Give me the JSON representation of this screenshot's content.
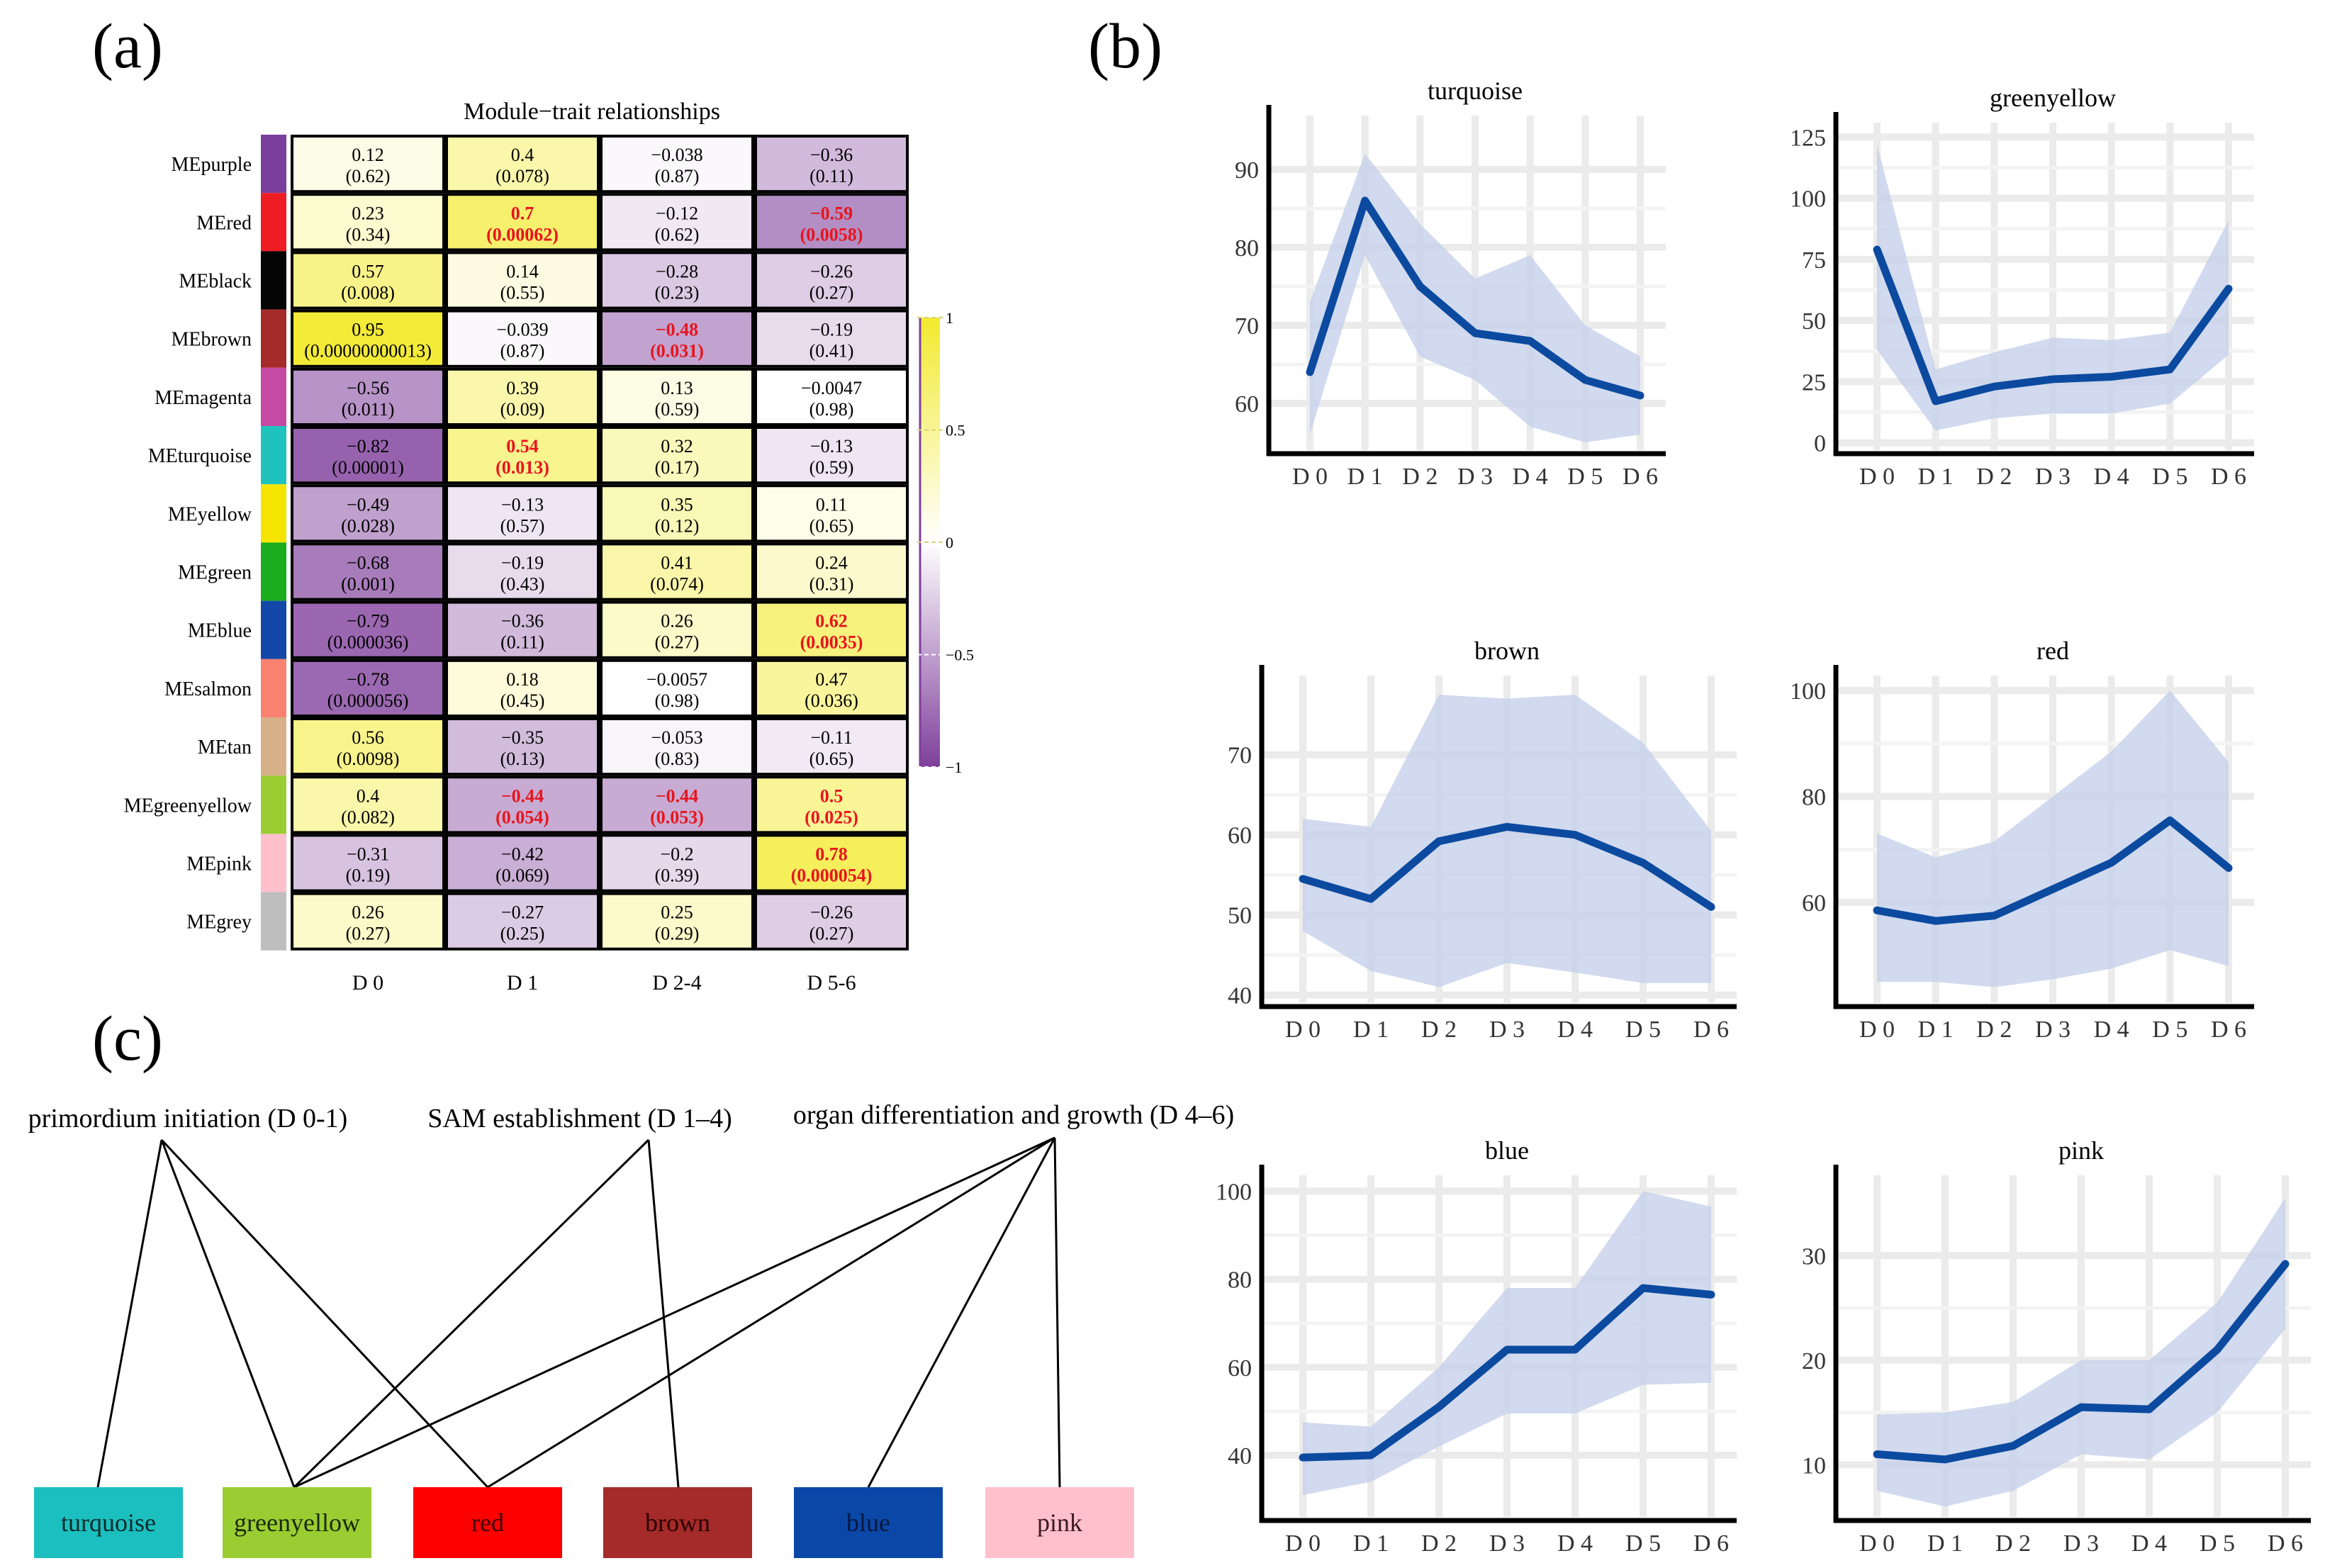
{
  "panel_labels": {
    "a": "(a)",
    "b": "(b)",
    "c": "(c)"
  },
  "colors": {
    "positive": "#f2ea2e",
    "neutral": "#ffffff",
    "negative": "#7f3f9b",
    "significant_text": "#e8141e",
    "line": "#0c4aa0",
    "band": "#c6d1ea"
  },
  "chart_data": [
    {
      "type": "heatmap",
      "title": "Module−trait relationships",
      "columns": [
        "D 0",
        "D 1",
        "D 2-4",
        "D 5-6"
      ],
      "value_range": [
        -1,
        1
      ],
      "legend_ticks": [
        1,
        0.5,
        0,
        -0.5,
        -1
      ],
      "legend_tick_labels": [
        "1",
        "0.5",
        "0",
        "−0.5",
        "−1"
      ],
      "rows": [
        {
          "label": "MEpurple",
          "module_color": "#7a3f9b",
          "cells": [
            {
              "r": 0.12,
              "r_text": "0.12",
              "p_text": "(0.62)",
              "sig": false
            },
            {
              "r": 0.4,
              "r_text": "0.4",
              "p_text": "(0.078)",
              "sig": false
            },
            {
              "r": -0.038,
              "r_text": "−0.038",
              "p_text": "(0.87)",
              "sig": false
            },
            {
              "r": -0.36,
              "r_text": "−0.36",
              "p_text": "(0.11)",
              "sig": false
            }
          ]
        },
        {
          "label": "MEred",
          "module_color": "#ee1d23",
          "cells": [
            {
              "r": 0.23,
              "r_text": "0.23",
              "p_text": "(0.34)",
              "sig": false
            },
            {
              "r": 0.7,
              "r_text": "0.7",
              "p_text": "(0.00062)",
              "sig": true
            },
            {
              "r": -0.12,
              "r_text": "−0.12",
              "p_text": "(0.62)",
              "sig": false
            },
            {
              "r": -0.59,
              "r_text": "−0.59",
              "p_text": "(0.0058)",
              "sig": true
            }
          ]
        },
        {
          "label": "MEblack",
          "module_color": "#050505",
          "cells": [
            {
              "r": 0.57,
              "r_text": "0.57",
              "p_text": "(0.008)",
              "sig": false
            },
            {
              "r": 0.14,
              "r_text": "0.14",
              "p_text": "(0.55)",
              "sig": false
            },
            {
              "r": -0.28,
              "r_text": "−0.28",
              "p_text": "(0.23)",
              "sig": false
            },
            {
              "r": -0.26,
              "r_text": "−0.26",
              "p_text": "(0.27)",
              "sig": false
            }
          ]
        },
        {
          "label": "MEbrown",
          "module_color": "#a52a2a",
          "cells": [
            {
              "r": 0.95,
              "r_text": "0.95",
              "p_text": "(0.00000000013)",
              "sig": false
            },
            {
              "r": -0.039,
              "r_text": "−0.039",
              "p_text": "(0.87)",
              "sig": false
            },
            {
              "r": -0.48,
              "r_text": "−0.48",
              "p_text": "(0.031)",
              "sig": true
            },
            {
              "r": -0.19,
              "r_text": "−0.19",
              "p_text": "(0.41)",
              "sig": false
            }
          ]
        },
        {
          "label": "MEmagenta",
          "module_color": "#c44aa4",
          "cells": [
            {
              "r": -0.56,
              "r_text": "−0.56",
              "p_text": "(0.011)",
              "sig": false
            },
            {
              "r": 0.39,
              "r_text": "0.39",
              "p_text": "(0.09)",
              "sig": false
            },
            {
              "r": 0.13,
              "r_text": "0.13",
              "p_text": "(0.59)",
              "sig": false
            },
            {
              "r": -0.0047,
              "r_text": "−0.0047",
              "p_text": "(0.98)",
              "sig": false
            }
          ]
        },
        {
          "label": "MEturquoise",
          "module_color": "#1fc3bd",
          "cells": [
            {
              "r": -0.82,
              "r_text": "−0.82",
              "p_text": "(0.00001)",
              "sig": false
            },
            {
              "r": 0.54,
              "r_text": "0.54",
              "p_text": "(0.013)",
              "sig": true
            },
            {
              "r": 0.32,
              "r_text": "0.32",
              "p_text": "(0.17)",
              "sig": false
            },
            {
              "r": -0.13,
              "r_text": "−0.13",
              "p_text": "(0.59)",
              "sig": false
            }
          ]
        },
        {
          "label": "MEyellow",
          "module_color": "#f4e400",
          "cells": [
            {
              "r": -0.49,
              "r_text": "−0.49",
              "p_text": "(0.028)",
              "sig": false
            },
            {
              "r": -0.13,
              "r_text": "−0.13",
              "p_text": "(0.57)",
              "sig": false
            },
            {
              "r": 0.35,
              "r_text": "0.35",
              "p_text": "(0.12)",
              "sig": false
            },
            {
              "r": 0.11,
              "r_text": "0.11",
              "p_text": "(0.65)",
              "sig": false
            }
          ]
        },
        {
          "label": "MEgreen",
          "module_color": "#1aad1d",
          "cells": [
            {
              "r": -0.68,
              "r_text": "−0.68",
              "p_text": "(0.001)",
              "sig": false
            },
            {
              "r": -0.19,
              "r_text": "−0.19",
              "p_text": "(0.43)",
              "sig": false
            },
            {
              "r": 0.41,
              "r_text": "0.41",
              "p_text": "(0.074)",
              "sig": false
            },
            {
              "r": 0.24,
              "r_text": "0.24",
              "p_text": "(0.31)",
              "sig": false
            }
          ]
        },
        {
          "label": "MEblue",
          "module_color": "#1348a8",
          "cells": [
            {
              "r": -0.79,
              "r_text": "−0.79",
              "p_text": "(0.000036)",
              "sig": false
            },
            {
              "r": -0.36,
              "r_text": "−0.36",
              "p_text": "(0.11)",
              "sig": false
            },
            {
              "r": 0.26,
              "r_text": "0.26",
              "p_text": "(0.27)",
              "sig": false
            },
            {
              "r": 0.62,
              "r_text": "0.62",
              "p_text": "(0.0035)",
              "sig": true
            }
          ]
        },
        {
          "label": "MEsalmon",
          "module_color": "#fa8170",
          "cells": [
            {
              "r": -0.78,
              "r_text": "−0.78",
              "p_text": "(0.000056)",
              "sig": false
            },
            {
              "r": 0.18,
              "r_text": "0.18",
              "p_text": "(0.45)",
              "sig": false
            },
            {
              "r": -0.0057,
              "r_text": "−0.0057",
              "p_text": "(0.98)",
              "sig": false
            },
            {
              "r": 0.47,
              "r_text": "0.47",
              "p_text": "(0.036)",
              "sig": false
            }
          ]
        },
        {
          "label": "MEtan",
          "module_color": "#d8b08a",
          "cells": [
            {
              "r": 0.56,
              "r_text": "0.56",
              "p_text": "(0.0098)",
              "sig": false
            },
            {
              "r": -0.35,
              "r_text": "−0.35",
              "p_text": "(0.13)",
              "sig": false
            },
            {
              "r": -0.053,
              "r_text": "−0.053",
              "p_text": "(0.83)",
              "sig": false
            },
            {
              "r": -0.11,
              "r_text": "−0.11",
              "p_text": "(0.65)",
              "sig": false
            }
          ]
        },
        {
          "label": "MEgreenyellow",
          "module_color": "#9acd32",
          "cells": [
            {
              "r": 0.4,
              "r_text": "0.4",
              "p_text": "(0.082)",
              "sig": false
            },
            {
              "r": -0.44,
              "r_text": "−0.44",
              "p_text": "(0.054)",
              "sig": true
            },
            {
              "r": -0.44,
              "r_text": "−0.44",
              "p_text": "(0.053)",
              "sig": true
            },
            {
              "r": 0.5,
              "r_text": "0.5",
              "p_text": "(0.025)",
              "sig": true
            }
          ]
        },
        {
          "label": "MEpink",
          "module_color": "#ffc0cb",
          "cells": [
            {
              "r": -0.31,
              "r_text": "−0.31",
              "p_text": "(0.19)",
              "sig": false
            },
            {
              "r": -0.42,
              "r_text": "−0.42",
              "p_text": "(0.069)",
              "sig": false
            },
            {
              "r": -0.2,
              "r_text": "−0.2",
              "p_text": "(0.39)",
              "sig": false
            },
            {
              "r": 0.78,
              "r_text": "0.78",
              "p_text": "(0.000054)",
              "sig": true
            }
          ]
        },
        {
          "label": "MEgrey",
          "module_color": "#bebebe",
          "cells": [
            {
              "r": 0.26,
              "r_text": "0.26",
              "p_text": "(0.27)",
              "sig": false
            },
            {
              "r": -0.27,
              "r_text": "−0.27",
              "p_text": "(0.25)",
              "sig": false
            },
            {
              "r": 0.25,
              "r_text": "0.25",
              "p_text": "(0.29)",
              "sig": false
            },
            {
              "r": -0.26,
              "r_text": "−0.26",
              "p_text": "(0.27)",
              "sig": false
            }
          ]
        }
      ]
    },
    {
      "type": "line",
      "title": "turquoise",
      "categories": [
        "D 0",
        "D 1",
        "D 2",
        "D 3",
        "D 4",
        "D 5",
        "D 6"
      ],
      "values": [
        64,
        86,
        75,
        69,
        68,
        63,
        61
      ],
      "lower": [
        56,
        79,
        66,
        63,
        57,
        55,
        56
      ],
      "upper": [
        73,
        92,
        83,
        76,
        79,
        70,
        66
      ],
      "ylim": [
        54,
        96
      ],
      "yticks": [
        60,
        70,
        80,
        90
      ]
    },
    {
      "type": "line",
      "title": "greenyellow",
      "categories": [
        "D 0",
        "D 1",
        "D 2",
        "D 3",
        "D 4",
        "D 5",
        "D 6"
      ],
      "values": [
        79,
        17,
        23,
        26,
        27,
        30,
        63
      ],
      "lower": [
        38,
        5,
        10,
        12,
        12,
        16,
        36
      ],
      "upper": [
        122,
        30,
        37,
        43,
        42,
        45,
        91
      ],
      "ylim": [
        -3,
        128
      ],
      "yticks": [
        0,
        25,
        50,
        75,
        100,
        125
      ]
    },
    {
      "type": "line",
      "title": "brown",
      "categories": [
        "D 0",
        "D 1",
        "D 2",
        "D 3",
        "D 4",
        "D 5",
        "D 6"
      ],
      "values": [
        54.5,
        52,
        59.2,
        61,
        60,
        56.5,
        51
      ],
      "lower": [
        48,
        43,
        41,
        44,
        42.8,
        41.5,
        41.5
      ],
      "upper": [
        62,
        61,
        77.5,
        77,
        77.5,
        71.5,
        60.5
      ],
      "ylim": [
        39,
        79
      ],
      "yticks": [
        40,
        50,
        60,
        70
      ]
    },
    {
      "type": "line",
      "title": "red",
      "categories": [
        "D 0",
        "D 1",
        "D 2",
        "D 3",
        "D 4",
        "D 5",
        "D 6"
      ],
      "values": [
        58.5,
        56.5,
        57.5,
        62.5,
        67.5,
        75.5,
        66.5
      ],
      "lower": [
        45,
        45,
        44,
        45.5,
        47.5,
        51,
        48
      ],
      "upper": [
        73,
        68.5,
        71.5,
        80,
        88.5,
        100,
        86.5
      ],
      "ylim": [
        41,
        101.5
      ],
      "yticks": [
        60,
        80,
        100
      ]
    },
    {
      "type": "line",
      "title": "blue",
      "categories": [
        "D 0",
        "D 1",
        "D 2",
        "D 3",
        "D 4",
        "D 5",
        "D 6"
      ],
      "values": [
        39.5,
        40,
        51,
        64,
        64,
        78,
        76.5
      ],
      "lower": [
        31,
        34,
        42,
        49.5,
        49.5,
        56,
        56.5
      ],
      "upper": [
        47.5,
        46.5,
        60,
        78,
        78,
        100,
        96.5
      ],
      "ylim": [
        26,
        102
      ],
      "yticks": [
        40,
        60,
        80,
        100
      ]
    },
    {
      "type": "line",
      "title": "pink",
      "categories": [
        "D 0",
        "D 1",
        "D 2",
        "D 3",
        "D 4",
        "D 5",
        "D 6"
      ],
      "values": [
        11,
        10.5,
        11.8,
        15.5,
        15.3,
        21,
        29.2
      ],
      "lower": [
        7.5,
        6,
        7.5,
        11,
        10.5,
        15,
        23
      ],
      "upper": [
        14.8,
        15,
        16,
        20,
        20,
        25.5,
        35.5
      ],
      "ylim": [
        5,
        37
      ],
      "yticks": [
        10,
        20,
        30
      ]
    },
    {
      "type": "diagram",
      "stages": [
        "primordium initiation (D 0-1)",
        "SAM establishment (D 1–4)",
        "organ differentiation and growth (D 4–6)"
      ],
      "modules": [
        {
          "label": "turquoise",
          "fill": "#1cbfbf",
          "text_color": "#0a2a2a"
        },
        {
          "label": "greenyellow",
          "fill": "#9acd32",
          "text_color": "#1a2a08"
        },
        {
          "label": "red",
          "fill": "#ff0000",
          "text_color": "#3a0000"
        },
        {
          "label": "brown",
          "fill": "#a52a2a",
          "text_color": "#2a0000"
        },
        {
          "label": "blue",
          "fill": "#0b47a6",
          "text_color": "#061840"
        },
        {
          "label": "pink",
          "fill": "#ffc0cb",
          "text_color": "#3a1a20"
        }
      ],
      "links": [
        [
          "primordium initiation (D 0-1)",
          "turquoise"
        ],
        [
          "primordium initiation (D 0-1)",
          "greenyellow"
        ],
        [
          "primordium initiation (D 0-1)",
          "red"
        ],
        [
          "SAM establishment (D 1–4)",
          "greenyellow"
        ],
        [
          "SAM establishment (D 1–4)",
          "brown"
        ],
        [
          "organ differentiation and growth (D 4–6)",
          "greenyellow"
        ],
        [
          "organ differentiation and growth (D 4–6)",
          "red"
        ],
        [
          "organ differentiation and growth (D 4–6)",
          "blue"
        ],
        [
          "organ differentiation and growth (D 4–6)",
          "pink"
        ]
      ]
    }
  ]
}
